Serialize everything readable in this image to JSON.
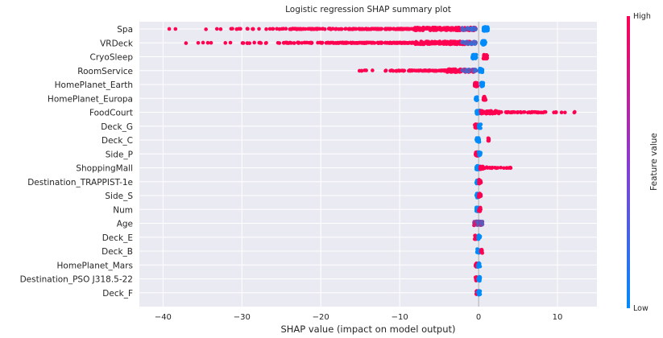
{
  "chart_data": {
    "type": "scatter",
    "title": "Logistic regression SHAP summary plot",
    "xlabel": "SHAP value (impact on model output)",
    "xlim": [
      -43,
      15
    ],
    "xticks": [
      -40,
      -30,
      -20,
      -10,
      0,
      10
    ],
    "xtick_labels": [
      "−40",
      "−30",
      "−20",
      "−10",
      "0",
      "10"
    ],
    "grid": true,
    "colorbar": {
      "label": "Feature value",
      "high_label": "High",
      "low_label": "Low",
      "high_color": "#ff0051",
      "low_color": "#008bfb",
      "placement": "right"
    },
    "features": [
      {
        "name": "Spa",
        "low_side": {
          "range": [
            -40.2,
            -0.3
          ],
          "color": "high",
          "density": "sparse-left"
        },
        "high_side": {
          "range": [
            0.6,
            1.2
          ],
          "color": "low"
        }
      },
      {
        "name": "VRDeck",
        "low_side": {
          "range": [
            -39,
            -0.3
          ],
          "color": "high",
          "density": "sparse-left"
        },
        "high_side": {
          "range": [
            0.4,
            0.9
          ],
          "color": "low"
        }
      },
      {
        "name": "CryoSleep",
        "low_side": {
          "range": [
            -0.8,
            -0.3
          ],
          "color": "low"
        },
        "high_side": {
          "range": [
            0.6,
            1.1
          ],
          "color": "high"
        }
      },
      {
        "name": "RoomService",
        "low_side": {
          "range": [
            -19,
            -0.3
          ],
          "color": "high",
          "density": "sparse-left"
        },
        "high_side": {
          "range": [
            0.1,
            0.5
          ],
          "color": "low"
        }
      },
      {
        "name": "HomePlanet_Earth",
        "low_side": {
          "range": [
            -0.5,
            -0.1
          ],
          "color": "high"
        },
        "high_side": {
          "range": [
            0.3,
            0.6
          ],
          "color": "low"
        }
      },
      {
        "name": "HomePlanet_Europa",
        "low_side": {
          "range": [
            -0.4,
            -0.1
          ],
          "color": "low"
        },
        "high_side": {
          "range": [
            0.6,
            0.9
          ],
          "color": "high"
        }
      },
      {
        "name": "FoodCourt",
        "low_side": {
          "range": [
            -0.3,
            0.2
          ],
          "color": "low"
        },
        "high_side": {
          "range": [
            0.3,
            12.6
          ],
          "color": "high",
          "density": "sparse-right"
        }
      },
      {
        "name": "Deck_G",
        "low_side": {
          "range": [
            -0.5,
            -0.1
          ],
          "color": "high"
        },
        "high_side": {
          "range": [
            0.0,
            0.3
          ],
          "color": "low"
        }
      },
      {
        "name": "Deck_C",
        "low_side": {
          "range": [
            -0.3,
            0.1
          ],
          "color": "low"
        },
        "high_side": {
          "range": [
            1.2,
            1.3
          ],
          "color": "high"
        }
      },
      {
        "name": "Side_P",
        "low_side": {
          "range": [
            -0.4,
            -0.1
          ],
          "color": "high"
        },
        "high_side": {
          "range": [
            0.0,
            0.3
          ],
          "color": "low"
        }
      },
      {
        "name": "ShoppingMall",
        "low_side": {
          "range": [
            -0.3,
            0.1
          ],
          "color": "low"
        },
        "high_side": {
          "range": [
            0.2,
            4.5
          ],
          "color": "high",
          "density": "sparse-right"
        }
      },
      {
        "name": "Destination_TRAPPIST-1e",
        "low_side": {
          "range": [
            -0.3,
            0.0
          ],
          "color": "low"
        },
        "high_side": {
          "range": [
            0.0,
            0.3
          ],
          "color": "high"
        }
      },
      {
        "name": "Side_S",
        "low_side": {
          "range": [
            -0.3,
            0.0
          ],
          "color": "low"
        },
        "high_side": {
          "range": [
            0.0,
            0.3
          ],
          "color": "high"
        }
      },
      {
        "name": "Num",
        "low_side": {
          "range": [
            -0.3,
            0.0
          ],
          "color": "low"
        },
        "high_side": {
          "range": [
            0.0,
            0.3
          ],
          "color": "high"
        }
      },
      {
        "name": "Age",
        "low_side": {
          "range": [
            -0.6,
            0.0
          ],
          "color": "mixed"
        },
        "high_side": {
          "range": [
            0.0,
            0.5
          ],
          "color": "mixed"
        }
      },
      {
        "name": "Deck_E",
        "low_side": {
          "range": [
            -0.5,
            -0.3
          ],
          "color": "high"
        },
        "high_side": {
          "range": [
            -0.1,
            0.2
          ],
          "color": "low"
        }
      },
      {
        "name": "Deck_B",
        "low_side": {
          "range": [
            -0.2,
            0.1
          ],
          "color": "low"
        },
        "high_side": {
          "range": [
            0.3,
            0.5
          ],
          "color": "high"
        }
      },
      {
        "name": "HomePlanet_Mars",
        "low_side": {
          "range": [
            -0.4,
            -0.2
          ],
          "color": "high"
        },
        "high_side": {
          "range": [
            -0.1,
            0.2
          ],
          "color": "low"
        }
      },
      {
        "name": "Destination_PSO J318.5-22",
        "low_side": {
          "range": [
            -0.4,
            -0.2
          ],
          "color": "high"
        },
        "high_side": {
          "range": [
            -0.1,
            0.2
          ],
          "color": "low"
        }
      },
      {
        "name": "Deck_F",
        "low_side": {
          "range": [
            -0.3,
            -0.1
          ],
          "color": "high"
        },
        "high_side": {
          "range": [
            -0.1,
            0.2
          ],
          "color": "low"
        }
      }
    ]
  }
}
